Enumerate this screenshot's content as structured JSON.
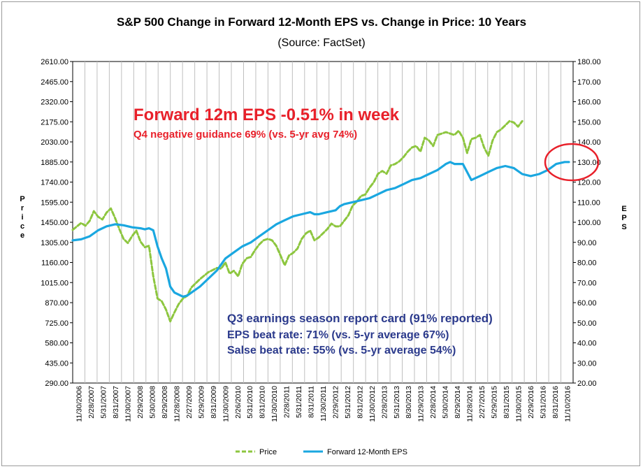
{
  "chart_data": {
    "type": "line",
    "title": "S&P 500 Change in Forward 12-Month EPS vs. Change in Price: 10 Years",
    "subtitle": "(Source: FactSet)",
    "ylabel_left": "Price",
    "ylabel_right": "EPS",
    "ylim_left": [
      290,
      2610
    ],
    "ylim_right": [
      20,
      180
    ],
    "left_ticks": [
      "2610.00",
      "2465.00",
      "2320.00",
      "2175.00",
      "2030.00",
      "1885.00",
      "1740.00",
      "1595.00",
      "1450.00",
      "1305.00",
      "1160.00",
      "1015.00",
      "870.00",
      "725.00",
      "580.00",
      "435.00",
      "290.00"
    ],
    "right_ticks": [
      "180.00",
      "170.00",
      "160.00",
      "150.00",
      "140.00",
      "130.00",
      "120.00",
      "110.00",
      "100.00",
      "90.00",
      "80.00",
      "70.00",
      "60.00",
      "50.00",
      "40.00",
      "30.00",
      "20.00"
    ],
    "x_tick_labels": [
      "11/30/2006",
      "2/28/2007",
      "5/31/2007",
      "8/31/2007",
      "11/30/2007",
      "2/29/2008",
      "5/30/2008",
      "8/29/2008",
      "11/28/2008",
      "2/27/2009",
      "5/29/2009",
      "8/31/2009",
      "11/30/2009",
      "2/26/2010",
      "5/31/2010",
      "8/31/2010",
      "11/30/2010",
      "2/28/2011",
      "5/31/2011",
      "8/31/2011",
      "11/30/2011",
      "2/29/2012",
      "5/31/2012",
      "8/31/2012",
      "11/30/2012",
      "2/28/2013",
      "5/31/2013",
      "8/30/2013",
      "11/29/2013",
      "2/28/2014",
      "5/30/2014",
      "8/29/2014",
      "11/28/2014",
      "2/27/2015",
      "5/29/2015",
      "8/31/2015",
      "11/30/2015",
      "2/29/2016",
      "5/31/2016",
      "8/31/2016",
      "11/10/2016"
    ],
    "series": [
      {
        "name": "Price",
        "axis": "left",
        "color": "#8dc63f",
        "style": "dashed",
        "values": [
          [
            0,
            1395
          ],
          [
            0.5,
            1420
          ],
          [
            1,
            1445
          ],
          [
            1.5,
            1425
          ],
          [
            2,
            1460
          ],
          [
            2.5,
            1530
          ],
          [
            3,
            1490
          ],
          [
            3.5,
            1470
          ],
          [
            4,
            1520
          ],
          [
            4.5,
            1550
          ],
          [
            5,
            1480
          ],
          [
            5.5,
            1400
          ],
          [
            6,
            1330
          ],
          [
            6.5,
            1300
          ],
          [
            7,
            1350
          ],
          [
            7.5,
            1390
          ],
          [
            8,
            1310
          ],
          [
            8.5,
            1270
          ],
          [
            9,
            1280
          ],
          [
            9.5,
            1060
          ],
          [
            10,
            900
          ],
          [
            10.5,
            880
          ],
          [
            11,
            820
          ],
          [
            11.5,
            735
          ],
          [
            12,
            800
          ],
          [
            12.5,
            860
          ],
          [
            13,
            900
          ],
          [
            13.5,
            920
          ],
          [
            14,
            980
          ],
          [
            15,
            1040
          ],
          [
            16,
            1090
          ],
          [
            17,
            1120
          ],
          [
            17.5,
            1115
          ],
          [
            18,
            1160
          ],
          [
            18.5,
            1080
          ],
          [
            19,
            1100
          ],
          [
            19.5,
            1060
          ],
          [
            20,
            1150
          ],
          [
            20.5,
            1190
          ],
          [
            21,
            1200
          ],
          [
            21.5,
            1250
          ],
          [
            22,
            1290
          ],
          [
            22.5,
            1320
          ],
          [
            23,
            1330
          ],
          [
            23.5,
            1320
          ],
          [
            24,
            1280
          ],
          [
            24.5,
            1210
          ],
          [
            25,
            1140
          ],
          [
            25.5,
            1210
          ],
          [
            26,
            1230
          ],
          [
            26.5,
            1260
          ],
          [
            27,
            1330
          ],
          [
            27.5,
            1370
          ],
          [
            28,
            1390
          ],
          [
            28.5,
            1320
          ],
          [
            29,
            1340
          ],
          [
            29.5,
            1370
          ],
          [
            30,
            1400
          ],
          [
            30.5,
            1440
          ],
          [
            31,
            1420
          ],
          [
            31.5,
            1420
          ],
          [
            32,
            1460
          ],
          [
            32.5,
            1500
          ],
          [
            33,
            1570
          ],
          [
            33.5,
            1600
          ],
          [
            34,
            1640
          ],
          [
            34.5,
            1650
          ],
          [
            35,
            1700
          ],
          [
            35.5,
            1740
          ],
          [
            36,
            1800
          ],
          [
            36.5,
            1820
          ],
          [
            37,
            1800
          ],
          [
            37.5,
            1860
          ],
          [
            38,
            1870
          ],
          [
            38.5,
            1890
          ],
          [
            39,
            1920
          ],
          [
            39.5,
            1960
          ],
          [
            40,
            1990
          ],
          [
            40.5,
            2000
          ],
          [
            41,
            1960
          ],
          [
            41.5,
            2060
          ],
          [
            42,
            2040
          ],
          [
            42.5,
            2000
          ],
          [
            43,
            2080
          ],
          [
            44,
            2100
          ],
          [
            45,
            2080
          ],
          [
            45.5,
            2110
          ],
          [
            46,
            2060
          ],
          [
            46.5,
            1950
          ],
          [
            47,
            2050
          ],
          [
            47.5,
            2060
          ],
          [
            48,
            2080
          ],
          [
            48.5,
            1990
          ],
          [
            49,
            1930
          ],
          [
            49.5,
            2040
          ],
          [
            50,
            2100
          ],
          [
            50.5,
            2120
          ],
          [
            51,
            2150
          ],
          [
            51.5,
            2180
          ],
          [
            52,
            2170
          ],
          [
            52.5,
            2140
          ],
          [
            53,
            2180
          ]
        ]
      },
      {
        "name": "Forward 12-Month EPS",
        "axis": "right",
        "color": "#1aa7e0",
        "style": "solid",
        "values": [
          [
            0,
            91
          ],
          [
            1,
            91.5
          ],
          [
            2,
            93
          ],
          [
            3,
            96
          ],
          [
            4,
            98
          ],
          [
            5,
            99
          ],
          [
            6,
            98.5
          ],
          [
            7,
            97.5
          ],
          [
            8,
            97
          ],
          [
            8.5,
            96.5
          ],
          [
            9,
            97
          ],
          [
            9.5,
            96
          ],
          [
            10,
            88
          ],
          [
            10.5,
            82
          ],
          [
            11,
            77
          ],
          [
            11.5,
            68
          ],
          [
            12,
            65
          ],
          [
            13,
            63
          ],
          [
            13.5,
            63.5
          ],
          [
            14,
            65
          ],
          [
            15,
            68
          ],
          [
            16,
            72
          ],
          [
            17,
            76
          ],
          [
            17.5,
            79
          ],
          [
            18,
            82
          ],
          [
            19,
            85
          ],
          [
            20,
            88
          ],
          [
            21,
            90
          ],
          [
            22,
            93
          ],
          [
            23,
            96
          ],
          [
            24,
            99
          ],
          [
            25,
            101
          ],
          [
            26,
            103
          ],
          [
            27,
            104
          ],
          [
            28,
            105
          ],
          [
            28.5,
            104
          ],
          [
            29,
            104
          ],
          [
            30,
            105
          ],
          [
            31,
            106
          ],
          [
            31.5,
            108
          ],
          [
            32,
            109
          ],
          [
            33,
            110
          ],
          [
            34,
            111
          ],
          [
            35,
            112
          ],
          [
            36,
            114
          ],
          [
            37,
            116
          ],
          [
            38,
            117
          ],
          [
            39,
            119
          ],
          [
            40,
            121
          ],
          [
            41,
            122
          ],
          [
            42,
            124
          ],
          [
            43,
            126
          ],
          [
            44,
            129
          ],
          [
            44.5,
            130
          ],
          [
            45,
            129
          ],
          [
            46,
            129
          ],
          [
            47,
            121
          ],
          [
            48,
            123
          ],
          [
            49,
            125
          ],
          [
            50,
            127
          ],
          [
            51,
            128
          ],
          [
            52,
            127
          ],
          [
            53,
            124
          ],
          [
            54,
            123
          ],
          [
            55,
            124
          ],
          [
            56,
            126
          ],
          [
            57,
            129
          ],
          [
            58,
            130
          ],
          [
            58.5,
            130
          ]
        ]
      }
    ],
    "annotations": {
      "headline": "Forward 12m EPS -0.51% in week",
      "guidance": "Q4 negative guidance 69% (vs. 5-yr avg 74%)",
      "report_card_title": "Q3 earnings season report card (91% reported)",
      "eps_beat": "EPS beat rate: 71% (vs. 5-yr average 67%)",
      "sales_beat": "Salse beat rate: 55% (vs. 5-yr average 54%)"
    },
    "legend": {
      "position": "bottom",
      "items": [
        {
          "label": "Price",
          "color": "#8dc63f",
          "style": "dashed"
        },
        {
          "label": "Forward 12-Month EPS",
          "color": "#1aa7e0",
          "style": "solid"
        }
      ]
    },
    "grid": "vertical",
    "highlight_color": "#e8202a"
  }
}
